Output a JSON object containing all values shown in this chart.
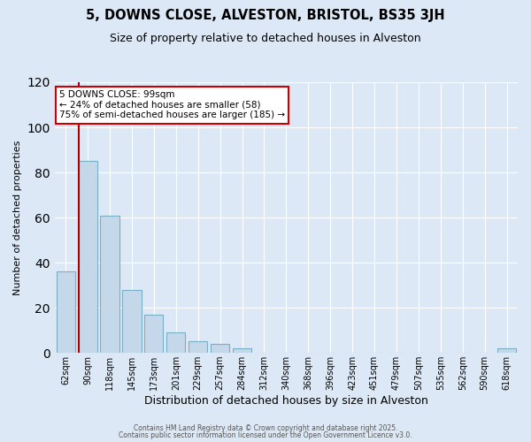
{
  "title": "5, DOWNS CLOSE, ALVESTON, BRISTOL, BS35 3JH",
  "subtitle": "Size of property relative to detached houses in Alveston",
  "xlabel": "Distribution of detached houses by size in Alveston",
  "ylabel": "Number of detached properties",
  "bar_labels": [
    "62sqm",
    "90sqm",
    "118sqm",
    "145sqm",
    "173sqm",
    "201sqm",
    "229sqm",
    "257sqm",
    "284sqm",
    "312sqm",
    "340sqm",
    "368sqm",
    "396sqm",
    "423sqm",
    "451sqm",
    "479sqm",
    "507sqm",
    "535sqm",
    "562sqm",
    "590sqm",
    "618sqm"
  ],
  "bar_values": [
    36,
    85,
    61,
    28,
    17,
    9,
    5,
    4,
    2,
    0,
    0,
    0,
    0,
    0,
    0,
    0,
    0,
    0,
    0,
    0,
    2
  ],
  "bar_color": "#c5d8ea",
  "bar_edge_color": "#7aafc8",
  "property_line_color": "#aa0000",
  "annotation_title": "5 DOWNS CLOSE: 99sqm",
  "annotation_line1": "← 24% of detached houses are smaller (58)",
  "annotation_line2": "75% of semi-detached houses are larger (185) →",
  "annotation_box_facecolor": "#ffffff",
  "annotation_box_edgecolor": "#cc0000",
  "ylim": [
    0,
    120
  ],
  "yticks": [
    0,
    20,
    40,
    60,
    80,
    100,
    120
  ],
  "background_color": "#dce8f5",
  "grid_color": "#ffffff",
  "footer1": "Contains HM Land Registry data © Crown copyright and database right 2025.",
  "footer2": "Contains public sector information licensed under the Open Government Licence v3.0."
}
